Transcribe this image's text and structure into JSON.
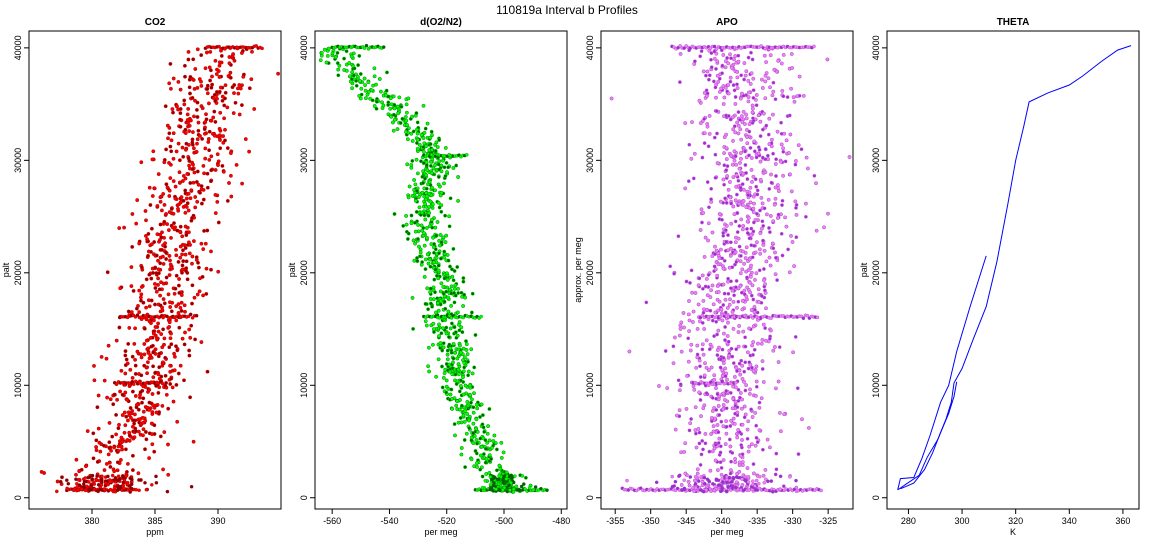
{
  "figure_title": "110819a   Interval b Profiles",
  "chart_data": [
    {
      "type": "scatter",
      "title": "CO2",
      "xlabel": "ppm",
      "ylabel": "palt",
      "xlim": [
        375,
        395
      ],
      "ylim": [
        -1000,
        41500
      ],
      "xticks": [
        380,
        385,
        390
      ],
      "yticks": [
        0,
        10000,
        20000,
        30000,
        40000
      ],
      "color": "#ff0000",
      "dark_color": "#8b0000",
      "center": [
        [
          0,
          380.8
        ],
        [
          1000,
          381
        ],
        [
          2000,
          381.5
        ],
        [
          3000,
          382
        ],
        [
          4000,
          382.4
        ],
        [
          5000,
          382.8
        ],
        [
          6000,
          383.2
        ],
        [
          7000,
          383.5
        ],
        [
          8000,
          383.8
        ],
        [
          9000,
          384
        ],
        [
          10000,
          384.2
        ],
        [
          11000,
          384.4
        ],
        [
          12000,
          384.6
        ],
        [
          13000,
          384.8
        ],
        [
          14000,
          385
        ],
        [
          15000,
          385.1
        ],
        [
          16000,
          385.2
        ],
        [
          17000,
          385.4
        ],
        [
          18000,
          385.6
        ],
        [
          19000,
          385.8
        ],
        [
          20000,
          386
        ],
        [
          21000,
          386.2
        ],
        [
          22000,
          386.3
        ],
        [
          23000,
          386.4
        ],
        [
          24000,
          386.6
        ],
        [
          25000,
          386.8
        ],
        [
          26000,
          387
        ],
        [
          27000,
          387.3
        ],
        [
          28000,
          387.5
        ],
        [
          29000,
          387.7
        ],
        [
          30000,
          387.9
        ],
        [
          31000,
          388.1
        ],
        [
          32000,
          388.3
        ],
        [
          33000,
          388.5
        ],
        [
          34000,
          388.8
        ],
        [
          35000,
          389.1
        ],
        [
          36000,
          389.4
        ],
        [
          37000,
          389.7
        ],
        [
          38000,
          390
        ],
        [
          39000,
          390.4
        ],
        [
          40000,
          391
        ]
      ],
      "spread": 1.6,
      "point_count": 950,
      "flat_levels": [
        {
          "y": 16100,
          "x_from": 382.2,
          "x_to": 388.3
        },
        {
          "y": 40050,
          "x_from": 389.0,
          "x_to": 393.5
        },
        {
          "y": 700,
          "x_from": 378.0,
          "x_to": 383.5
        },
        {
          "y": 10200,
          "x_from": 381.8,
          "x_to": 385.6
        }
      ],
      "outliers": [
        [
          376.2,
          2200
        ],
        [
          376.0,
          2300
        ]
      ]
    },
    {
      "type": "scatter",
      "title": "d(O2/N2)",
      "xlabel": "per meg",
      "ylabel": "palt",
      "xlim": [
        -566,
        -478
      ],
      "ylim": [
        -1000,
        41500
      ],
      "xticks": [
        -560,
        -540,
        -520,
        -500,
        -480
      ],
      "yticks": [
        0,
        10000,
        20000,
        30000,
        40000
      ],
      "color": "#00ff00",
      "dark_color": "#006400",
      "center": [
        [
          0,
          -498
        ],
        [
          1000,
          -500
        ],
        [
          2000,
          -502
        ],
        [
          3000,
          -505
        ],
        [
          4000,
          -507
        ],
        [
          5000,
          -508
        ],
        [
          6000,
          -510
        ],
        [
          7000,
          -512
        ],
        [
          8000,
          -513
        ],
        [
          9000,
          -514
        ],
        [
          10000,
          -515
        ],
        [
          11000,
          -516
        ],
        [
          12000,
          -517
        ],
        [
          13000,
          -518
        ],
        [
          14000,
          -519
        ],
        [
          15000,
          -520
        ],
        [
          16000,
          -521
        ],
        [
          17000,
          -522
        ],
        [
          18000,
          -521
        ],
        [
          19000,
          -520
        ],
        [
          20000,
          -522
        ],
        [
          21000,
          -524
        ],
        [
          22000,
          -526
        ],
        [
          23000,
          -527
        ],
        [
          24000,
          -528
        ],
        [
          25000,
          -528
        ],
        [
          26000,
          -528
        ],
        [
          27000,
          -527
        ],
        [
          28000,
          -526
        ],
        [
          29000,
          -524
        ],
        [
          30000,
          -524
        ],
        [
          31000,
          -526
        ],
        [
          32000,
          -529
        ],
        [
          33000,
          -533
        ],
        [
          34000,
          -537
        ],
        [
          35000,
          -540
        ],
        [
          36000,
          -545
        ],
        [
          37000,
          -549
        ],
        [
          38000,
          -553
        ],
        [
          39000,
          -558
        ],
        [
          40000,
          -560
        ]
      ],
      "spread": 3.5,
      "point_count": 950,
      "flat_levels": [
        {
          "y": 40050,
          "x_from": -560.0,
          "x_to": -542.0
        },
        {
          "y": 16100,
          "x_from": -528.0,
          "x_to": -508.0
        },
        {
          "y": 700,
          "x_from": -510.0,
          "x_to": -485.0
        },
        {
          "y": 30400,
          "x_from": -528.0,
          "x_to": -513.0
        }
      ],
      "outliers": [
        [
          -564.0,
          38900
        ],
        [
          -562.0,
          38700
        ],
        [
          -550.0,
          35500
        ]
      ]
    },
    {
      "type": "scatter",
      "title": "APO",
      "xlabel": "per meg",
      "ylabel": "approx. per meg",
      "xlim": [
        -357,
        -321.5
      ],
      "ylim": [
        -1000,
        41500
      ],
      "xticks": [
        -355,
        -350,
        -345,
        -340,
        -335,
        -330,
        -325
      ],
      "yticks": [
        0,
        10000,
        20000,
        30000,
        40000
      ],
      "color": "#ee82ee",
      "dark_color": "#9932cc",
      "center": [
        [
          0,
          -340
        ],
        [
          5000,
          -339.5
        ],
        [
          10000,
          -340
        ],
        [
          15000,
          -339
        ],
        [
          20000,
          -338
        ],
        [
          25000,
          -336.5
        ],
        [
          30000,
          -336
        ],
        [
          35000,
          -337
        ],
        [
          40000,
          -338
        ]
      ],
      "spread": 3.6,
      "point_count": 1200,
      "flat_levels": [
        {
          "y": 40050,
          "x_from": -347.0,
          "x_to": -327.0
        },
        {
          "y": 16100,
          "x_from": -343.0,
          "x_to": -326.5
        },
        {
          "y": 700,
          "x_from": -354.0,
          "x_to": -326.0
        },
        {
          "y": 10200,
          "x_from": -344.0,
          "x_to": -338.0
        }
      ],
      "outliers": [
        [
          -355.5,
          35500
        ],
        [
          -322.0,
          30300
        ],
        [
          -353.0,
          13000
        ]
      ]
    },
    {
      "type": "line",
      "title": "THETA",
      "xlabel": "K",
      "ylabel": "palt",
      "xlim": [
        272,
        366
      ],
      "ylim": [
        -1000,
        41500
      ],
      "xticks": [
        280,
        300,
        320,
        340,
        360
      ],
      "yticks": [
        0,
        10000,
        20000,
        30000,
        40000
      ],
      "color": "#0000ff",
      "series": [
        {
          "points": [
            [
              276,
              700
            ],
            [
              277,
              1700
            ],
            [
              282,
              1800
            ],
            [
              285,
              3500
            ],
            [
              288,
              5500
            ],
            [
              292,
              8500
            ],
            [
              295,
              10000
            ],
            [
              298,
              13000
            ],
            [
              303,
              17000
            ],
            [
              309,
              21500
            ]
          ]
        },
        {
          "points": [
            [
              276,
              700
            ],
            [
              279,
              1200
            ],
            [
              284,
              2000
            ],
            [
              287,
              3600
            ],
            [
              291,
              5200
            ],
            [
              294,
              7000
            ],
            [
              296,
              8500
            ],
            [
              297,
              10200
            ],
            [
              300,
              11500
            ],
            [
              304,
              14000
            ],
            [
              309,
              17000
            ],
            [
              313,
              21000
            ],
            [
              317,
              26000
            ],
            [
              320,
              30000
            ],
            [
              323,
              33000
            ],
            [
              325,
              35200
            ],
            [
              332,
              36000
            ],
            [
              340,
              36700
            ],
            [
              345,
              37500
            ],
            [
              352,
              38800
            ],
            [
              358,
              39800
            ],
            [
              363,
              40200
            ]
          ]
        },
        {
          "points": [
            [
              277,
              800
            ],
            [
              282,
              1300
            ],
            [
              286,
              2500
            ],
            [
              289,
              4000
            ],
            [
              292,
              5800
            ],
            [
              295,
              7500
            ],
            [
              297,
              9000
            ],
            [
              298,
              10300
            ]
          ]
        }
      ]
    }
  ]
}
